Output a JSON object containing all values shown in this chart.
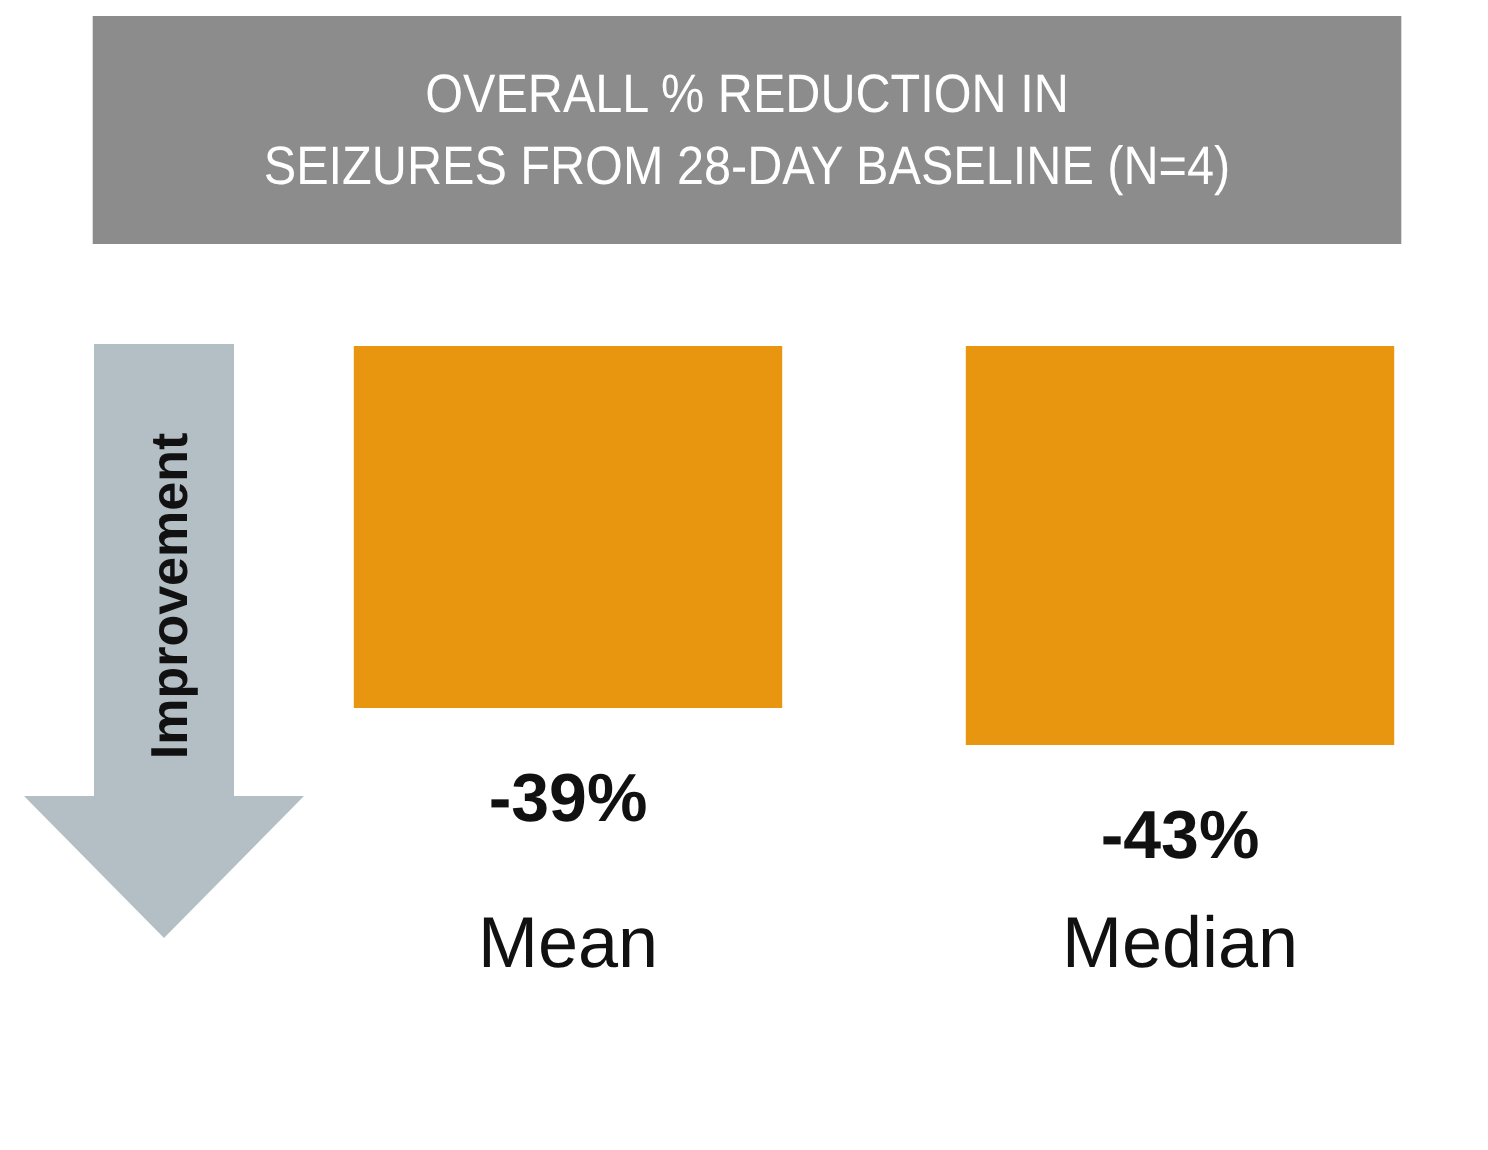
{
  "chart_data": {
    "type": "bar",
    "title": "OVERALL % REDUCTION IN\nSEIZURES FROM 28-DAY BASELINE (N=4)",
    "categories": [
      "Mean",
      "Median"
    ],
    "values": [
      -39,
      -43
    ],
    "value_labels": [
      "-39%",
      "-43%"
    ],
    "color": "#e8960f",
    "annotations": [
      "Improvement"
    ],
    "grid": false,
    "legend": false
  }
}
